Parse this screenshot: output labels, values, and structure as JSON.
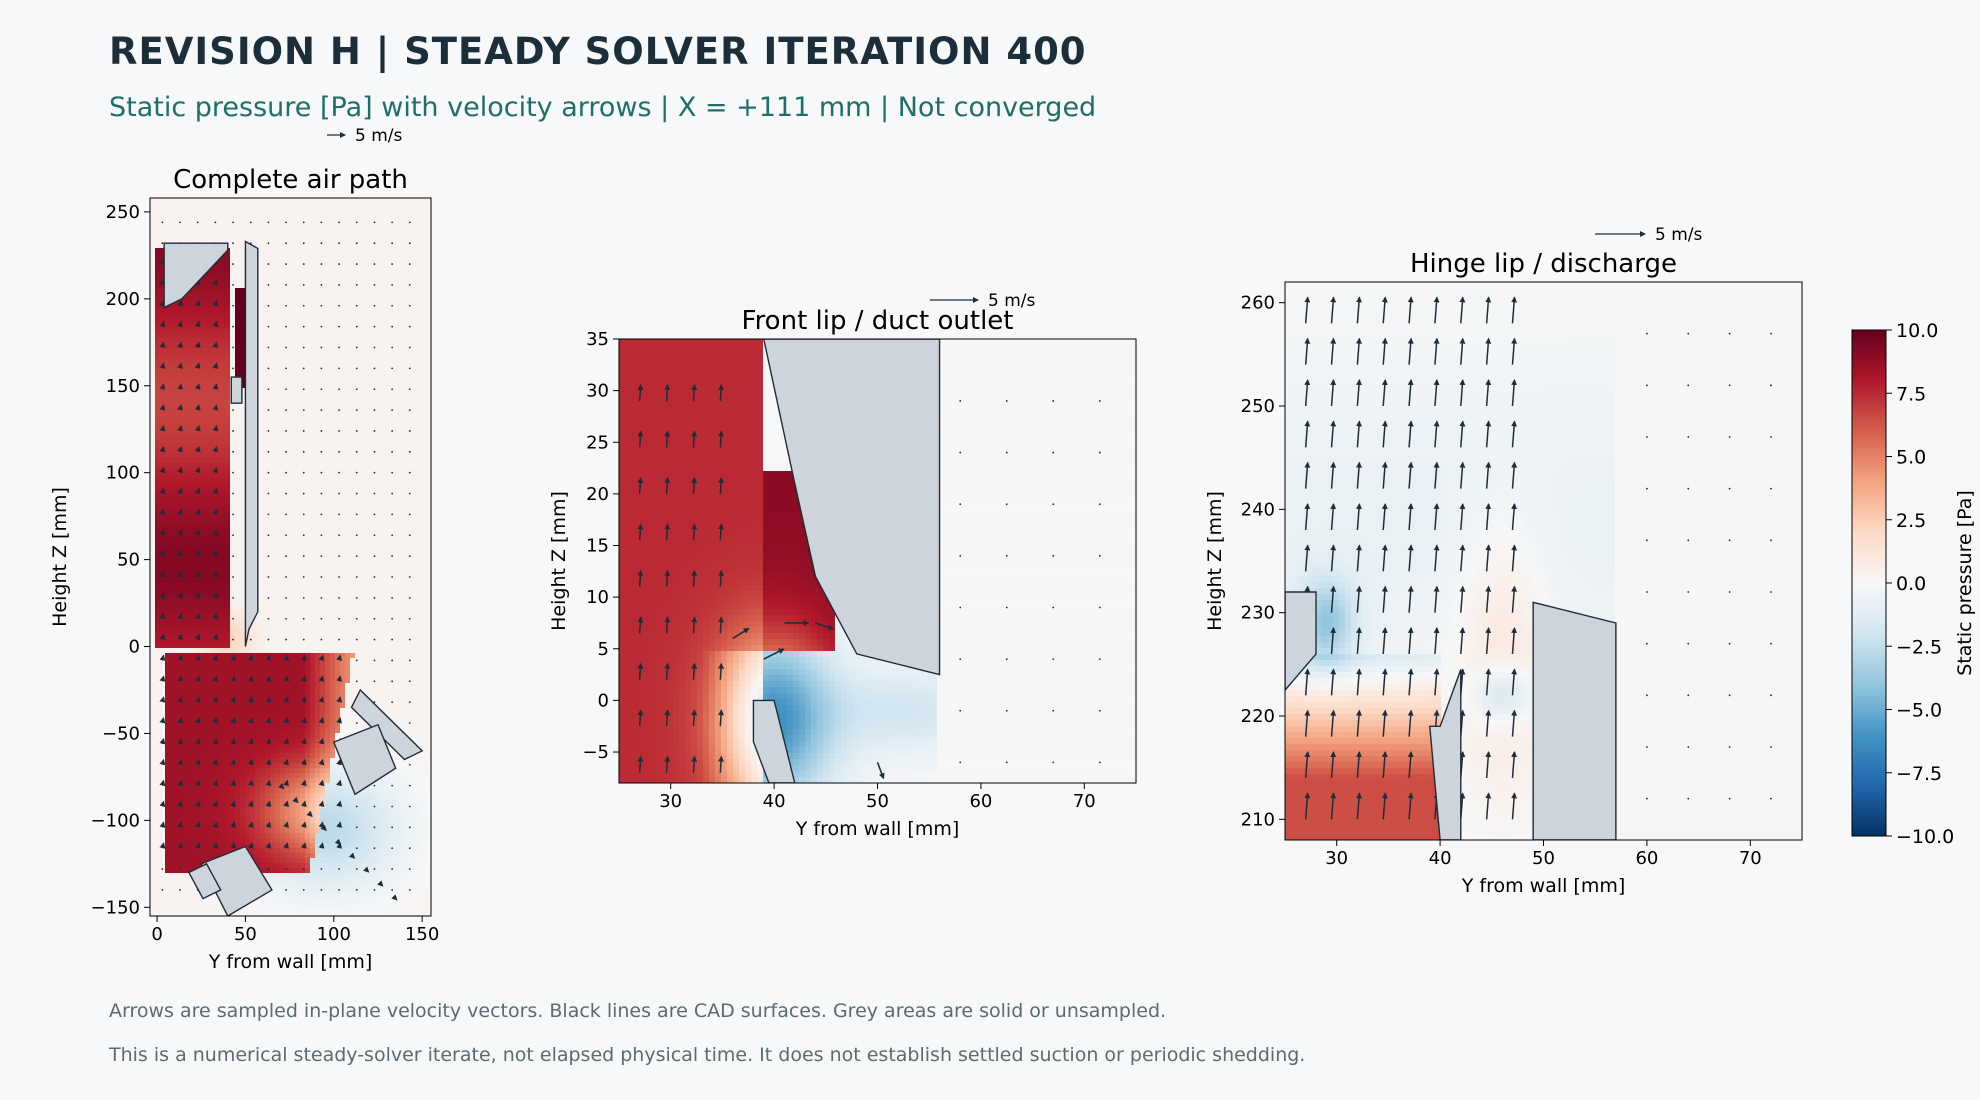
{
  "header": {
    "title": "REVISION H  |  STEADY SOLVER ITERATION 400",
    "subtitle": "Static pressure [Pa] with velocity arrows  |  X = +111 mm  |  Not converged"
  },
  "footnotes": [
    "Arrows are sampled in-plane velocity vectors. Black lines are CAD surfaces. Grey areas are solid or unsampled.",
    "This is a numerical steady-solver iterate, not elapsed physical time. It does not establish settled suction or periodic shedding."
  ],
  "colors": {
    "background": "#f6f8fa",
    "solid": "#cdd4db",
    "cad_line": "#1f2d3a",
    "arrow": "#1f2d3a",
    "colormap": [
      "#053061",
      "#2166ac",
      "#4393c3",
      "#92c5de",
      "#d1e5f0",
      "#f7f7f7",
      "#fddbc7",
      "#f4a582",
      "#d6604d",
      "#b2182b",
      "#67001f"
    ]
  },
  "chart_data": [
    {
      "type": "heatmap",
      "title": "Complete air path",
      "xlabel": "Y from wall [mm]",
      "ylabel": "Height Z [mm]",
      "xlim": [
        -4,
        155
      ],
      "ylim": [
        -155,
        258
      ],
      "xticks": [
        0,
        50,
        100,
        150
      ],
      "yticks": [
        -150,
        -100,
        -50,
        0,
        50,
        100,
        150,
        200,
        250
      ],
      "key_label": "5 m/s",
      "key_value": 5,
      "fields": [
        {
          "region": "vertical duct interior",
          "y": [
            2,
            40
          ],
          "z": [
            5,
            225
          ],
          "pressure": 8.5
        },
        {
          "region": "lower diffuser",
          "y": [
            5,
            110
          ],
          "z": [
            -120,
            -15
          ],
          "pressure": 8.5
        },
        {
          "region": "upper slot",
          "y": [
            44,
            50
          ],
          "z": [
            160,
            200
          ],
          "pressure": 10.0
        },
        {
          "region": "outer room",
          "y": [
            50,
            155
          ],
          "z": [
            -30,
            258
          ],
          "pressure": 0.2
        },
        {
          "region": "discharge wake",
          "y": [
            60,
            150
          ],
          "z": [
            -150,
            -60
          ],
          "pressure": -2.0
        }
      ]
    },
    {
      "type": "heatmap",
      "title": "Front lip / duct outlet",
      "xlabel": "Y from wall [mm]",
      "ylabel": "Height Z [mm]",
      "xlim": [
        25,
        75
      ],
      "ylim": [
        -8,
        35
      ],
      "xticks": [
        30,
        40,
        50,
        60,
        70
      ],
      "yticks": [
        -5,
        0,
        5,
        10,
        15,
        20,
        25,
        30,
        35
      ],
      "key_label": "5 m/s",
      "key_value": 5,
      "fields": [
        {
          "region": "duct interior",
          "y": [
            25,
            38
          ],
          "z": [
            -8,
            35
          ],
          "pressure": 7.5
        },
        {
          "region": "lip stagnation",
          "y": [
            38,
            46
          ],
          "z": [
            8,
            22
          ],
          "pressure": 9.0
        },
        {
          "region": "outlet bubble",
          "y": [
            35,
            48
          ],
          "z": [
            -8,
            6
          ],
          "pressure": 0.5
        },
        {
          "region": "outlet low pressure",
          "y": [
            48,
            62
          ],
          "z": [
            -8,
            2
          ],
          "pressure": -1.0
        },
        {
          "region": "ambient",
          "y": [
            56,
            75
          ],
          "z": [
            -8,
            35
          ],
          "pressure": 0.0
        }
      ]
    },
    {
      "type": "heatmap",
      "title": "Hinge lip / discharge",
      "xlabel": "Y from wall [mm]",
      "ylabel": "Height Z [mm]",
      "xlim": [
        25,
        75
      ],
      "ylim": [
        208,
        262
      ],
      "xticks": [
        30,
        40,
        50,
        60,
        70
      ],
      "yticks": [
        210,
        220,
        230,
        240,
        250,
        260
      ],
      "key_label": "5 m/s",
      "key_value": 5,
      "fields": [
        {
          "region": "lower inlet",
          "y": [
            25,
            40
          ],
          "z": [
            208,
            226
          ],
          "pressure": 6.5
        },
        {
          "region": "upper jet",
          "y": [
            25,
            48
          ],
          "z": [
            232,
            262
          ],
          "pressure": -0.6
        },
        {
          "region": "shear layer",
          "y": [
            42,
            50
          ],
          "z": [
            215,
            235
          ],
          "pressure": 1.2
        },
        {
          "region": "corner vortex",
          "y": [
            27,
            32
          ],
          "z": [
            226,
            232
          ],
          "pressure": -3.5
        },
        {
          "region": "ambient",
          "y": [
            57,
            75
          ],
          "z": [
            208,
            262
          ],
          "pressure": 0.0
        }
      ]
    }
  ],
  "colorbar": {
    "label": "Static pressure [Pa]",
    "min": -10.0,
    "max": 10.0,
    "ticks": [
      "−10.0",
      "−7.5",
      "−5.0",
      "−2.5",
      "0.0",
      "2.5",
      "5.0",
      "7.5",
      "10.0"
    ],
    "tick_values": [
      -10,
      -7.5,
      -5,
      -2.5,
      0,
      2.5,
      5,
      7.5,
      10
    ]
  }
}
